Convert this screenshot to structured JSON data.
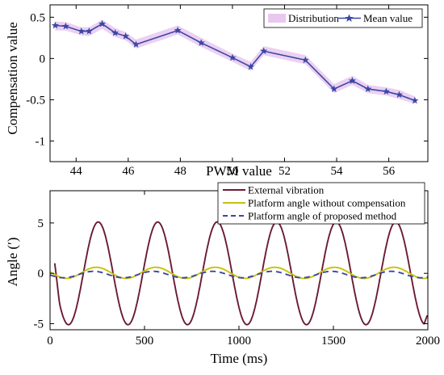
{
  "chart_data": [
    {
      "type": "line",
      "xlabel": "PWM value",
      "ylabel": "Compensation value",
      "xlim": [
        43,
        57.5
      ],
      "ylim": [
        -1.25,
        0.65
      ],
      "xticks": [
        44,
        46,
        48,
        50,
        52,
        54,
        56
      ],
      "yticks": [
        0.5,
        0,
        -0.5,
        -1
      ],
      "ytick_labels": [
        "0.5",
        "0",
        "-0.5",
        "-1"
      ],
      "grid": false,
      "legend_position": "top-right",
      "series": [
        {
          "name": "Distribution",
          "kind": "band",
          "color": "#e9c8f0",
          "x": [
            43.2,
            43.6,
            44.2,
            44.5,
            45.0,
            45.5,
            45.9,
            46.3,
            47.9,
            48.8,
            50.0,
            50.7,
            51.2,
            52.8,
            53.9,
            54.6,
            55.2,
            55.9,
            56.4,
            57.0
          ],
          "lower": [
            0.34,
            0.34,
            0.28,
            0.27,
            0.36,
            0.26,
            0.22,
            0.12,
            0.29,
            0.14,
            -0.04,
            -0.15,
            0.04,
            -0.07,
            -0.42,
            -0.32,
            -0.42,
            -0.45,
            -0.49,
            -0.55
          ],
          "upper": [
            0.45,
            0.44,
            0.38,
            0.38,
            0.47,
            0.37,
            0.32,
            0.23,
            0.4,
            0.25,
            0.06,
            -0.04,
            0.15,
            0.04,
            -0.31,
            -0.21,
            -0.32,
            -0.35,
            -0.38,
            -0.46
          ]
        },
        {
          "name": "Mean value",
          "kind": "line-marker",
          "color": "#3a48a5",
          "x": [
            43.2,
            43.6,
            44.2,
            44.5,
            45.0,
            45.5,
            45.9,
            46.3,
            47.9,
            48.8,
            50.0,
            50.7,
            51.2,
            52.8,
            53.9,
            54.6,
            55.2,
            55.9,
            56.4,
            57.0
          ],
          "y": [
            0.4,
            0.39,
            0.33,
            0.33,
            0.42,
            0.31,
            0.27,
            0.17,
            0.34,
            0.19,
            0.01,
            -0.1,
            0.09,
            -0.02,
            -0.37,
            -0.27,
            -0.37,
            -0.4,
            -0.44,
            -0.51
          ]
        }
      ]
    },
    {
      "type": "line",
      "xlabel": "Time (ms)",
      "ylabel": "Angle (′)",
      "xlim": [
        0,
        2000
      ],
      "ylim": [
        -5.6,
        8.2
      ],
      "xticks": [
        0,
        500,
        1000,
        1500,
        2000
      ],
      "yticks": [
        5,
        0,
        -5
      ],
      "ytick_labels": [
        "5",
        "0",
        "-5"
      ],
      "grid": false,
      "legend_position": "top-right",
      "series": [
        {
          "name": "External vibration",
          "color": "#6b1b33",
          "style": "solid",
          "amplitude": 5.1,
          "period_ms": 315,
          "phase_peak_ms": 255,
          "x_start": 25,
          "y_start": 1.0,
          "y_end": -4.0
        },
        {
          "name": "Platform angle without compensation",
          "color": "#c7c20a",
          "style": "solid",
          "amplitude": 0.55,
          "period_ms": 315,
          "phase_peak_ms": 245,
          "offset": 0.05
        },
        {
          "name": "Platform angle of proposed method",
          "color": "#3a48a5",
          "style": "dashed",
          "amplitude": 0.32,
          "period_ms": 315,
          "phase_peak_ms": 230,
          "offset": -0.12
        }
      ]
    }
  ]
}
